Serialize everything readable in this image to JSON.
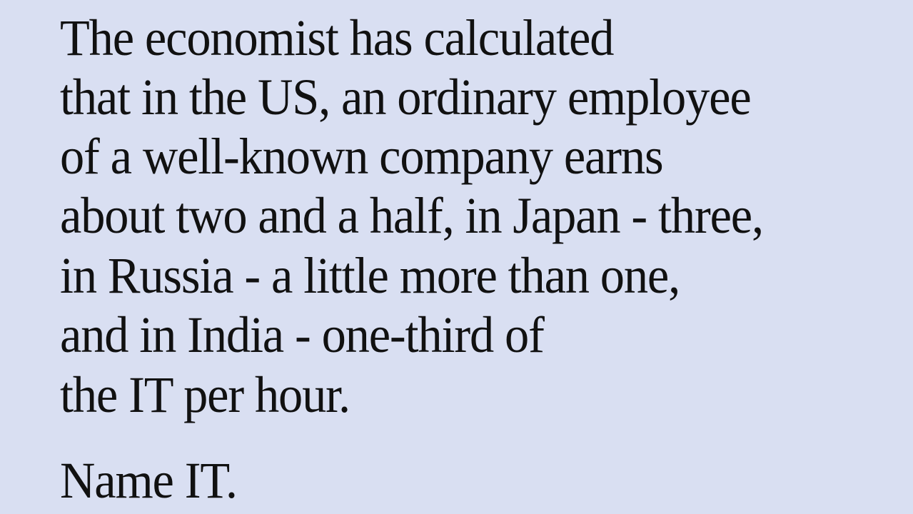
{
  "slide": {
    "background_color": "#d9dff2",
    "text_color": "#111111",
    "lines": [
      "The economist has calculated",
      "that in the US, an ordinary employee",
      "of a well-known company earns",
      "about two and a half, in Japan - three,",
      "in Russia - a little more than one,",
      "and in India - one-third of",
      "the IT per hour."
    ],
    "question": "Name IT."
  }
}
